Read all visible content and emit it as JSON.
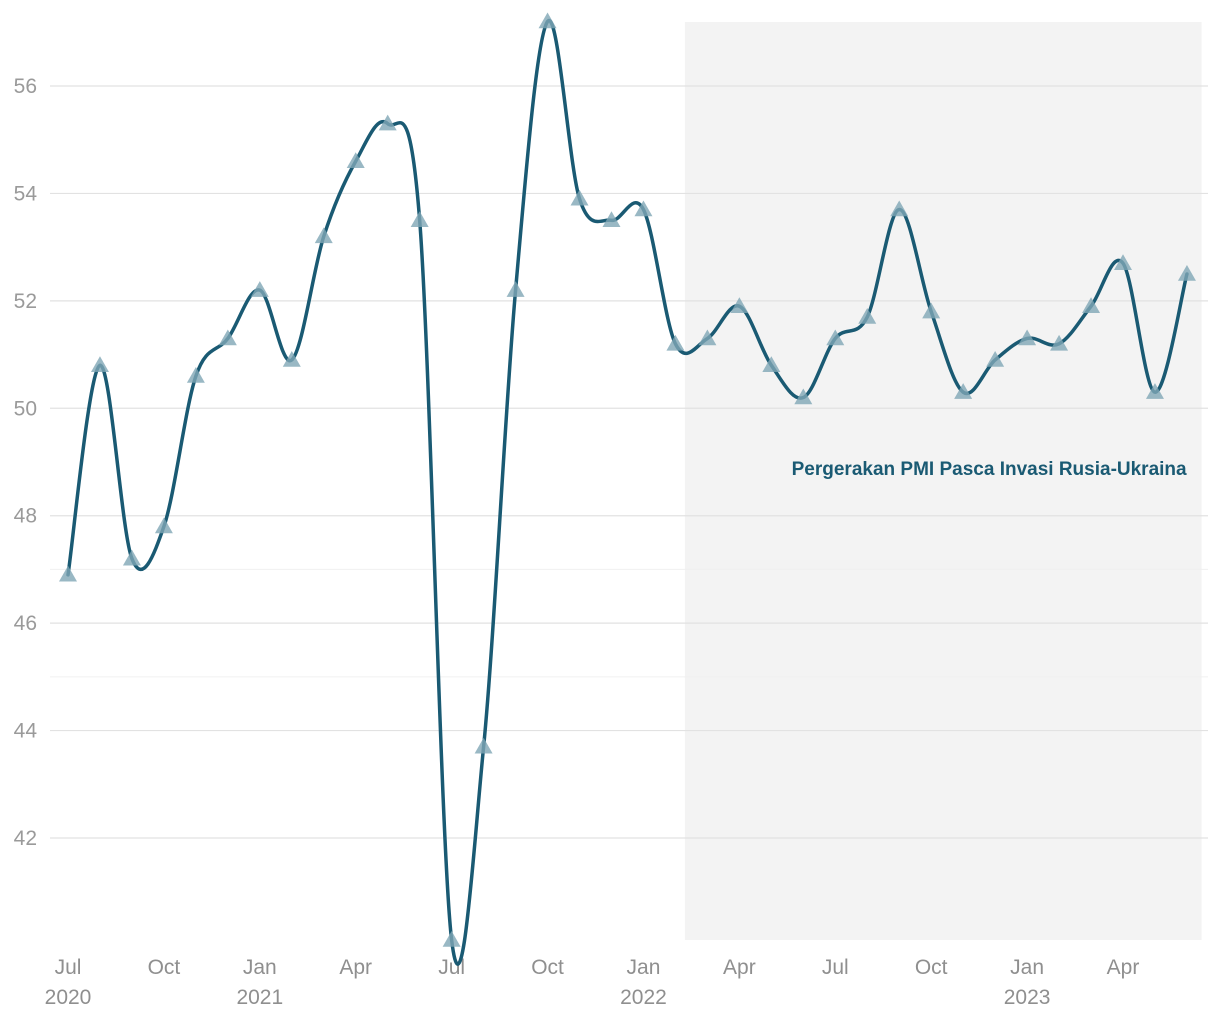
{
  "chart_data": {
    "type": "line",
    "title": "",
    "xlabel": "",
    "ylabel": "",
    "x": [
      "2020-07",
      "2020-08",
      "2020-09",
      "2020-10",
      "2020-11",
      "2020-12",
      "2021-01",
      "2021-02",
      "2021-03",
      "2021-04",
      "2021-05",
      "2021-06",
      "2021-07",
      "2021-08",
      "2021-09",
      "2021-10",
      "2021-11",
      "2021-12",
      "2022-01",
      "2022-02",
      "2022-03",
      "2022-04",
      "2022-05",
      "2022-06",
      "2022-07",
      "2022-08",
      "2022-09",
      "2022-10",
      "2022-11",
      "2022-12",
      "2023-01",
      "2023-02",
      "2023-03",
      "2023-04",
      "2023-05",
      "2023-06"
    ],
    "series": [
      {
        "name": "",
        "values": [
          46.9,
          50.8,
          47.2,
          47.8,
          50.6,
          51.3,
          52.2,
          50.9,
          53.2,
          54.6,
          55.3,
          53.5,
          40.1,
          43.7,
          52.2,
          57.2,
          53.9,
          53.5,
          53.7,
          51.2,
          51.3,
          51.9,
          50.8,
          50.2,
          51.3,
          51.7,
          53.7,
          51.8,
          50.3,
          50.9,
          51.3,
          51.2,
          51.9,
          52.7,
          50.3,
          52.5
        ],
        "color": "#1a5a73",
        "marker": "triangle",
        "marker_color": "#7fa6b5"
      }
    ],
    "ylim": [
      40.0,
      57.3
    ],
    "yticks": [
      42,
      44,
      46,
      48,
      50,
      52,
      54,
      56
    ],
    "ytick_labels": [
      "42",
      "44",
      "46",
      "48",
      "50",
      "52",
      "54",
      "56"
    ],
    "xticks": [
      {
        "x": "2020-07",
        "month": "Jul",
        "year": "2020"
      },
      {
        "x": "2020-10",
        "month": "Oct",
        "year": ""
      },
      {
        "x": "2021-01",
        "month": "Jan",
        "year": "2021"
      },
      {
        "x": "2021-04",
        "month": "Apr",
        "year": ""
      },
      {
        "x": "2021-07",
        "month": "Jul",
        "year": ""
      },
      {
        "x": "2021-10",
        "month": "Oct",
        "year": ""
      },
      {
        "x": "2022-01",
        "month": "Jan",
        "year": "2022"
      },
      {
        "x": "2022-04",
        "month": "Apr",
        "year": ""
      },
      {
        "x": "2022-07",
        "month": "Jul",
        "year": ""
      },
      {
        "x": "2022-10",
        "month": "Oct",
        "year": ""
      },
      {
        "x": "2023-01",
        "month": "Jan",
        "year": "2023"
      },
      {
        "x": "2023-04",
        "month": "Apr",
        "year": ""
      }
    ],
    "grid": true,
    "highlight_region": {
      "x_start": "2022-02-10",
      "x_end": "2023-06-15",
      "color": "#f3f3f3",
      "label": "Pergerakan PMI Pasca Invasi Rusia-Ukraina",
      "label_color": "#1a5a73"
    },
    "legend": "none"
  }
}
